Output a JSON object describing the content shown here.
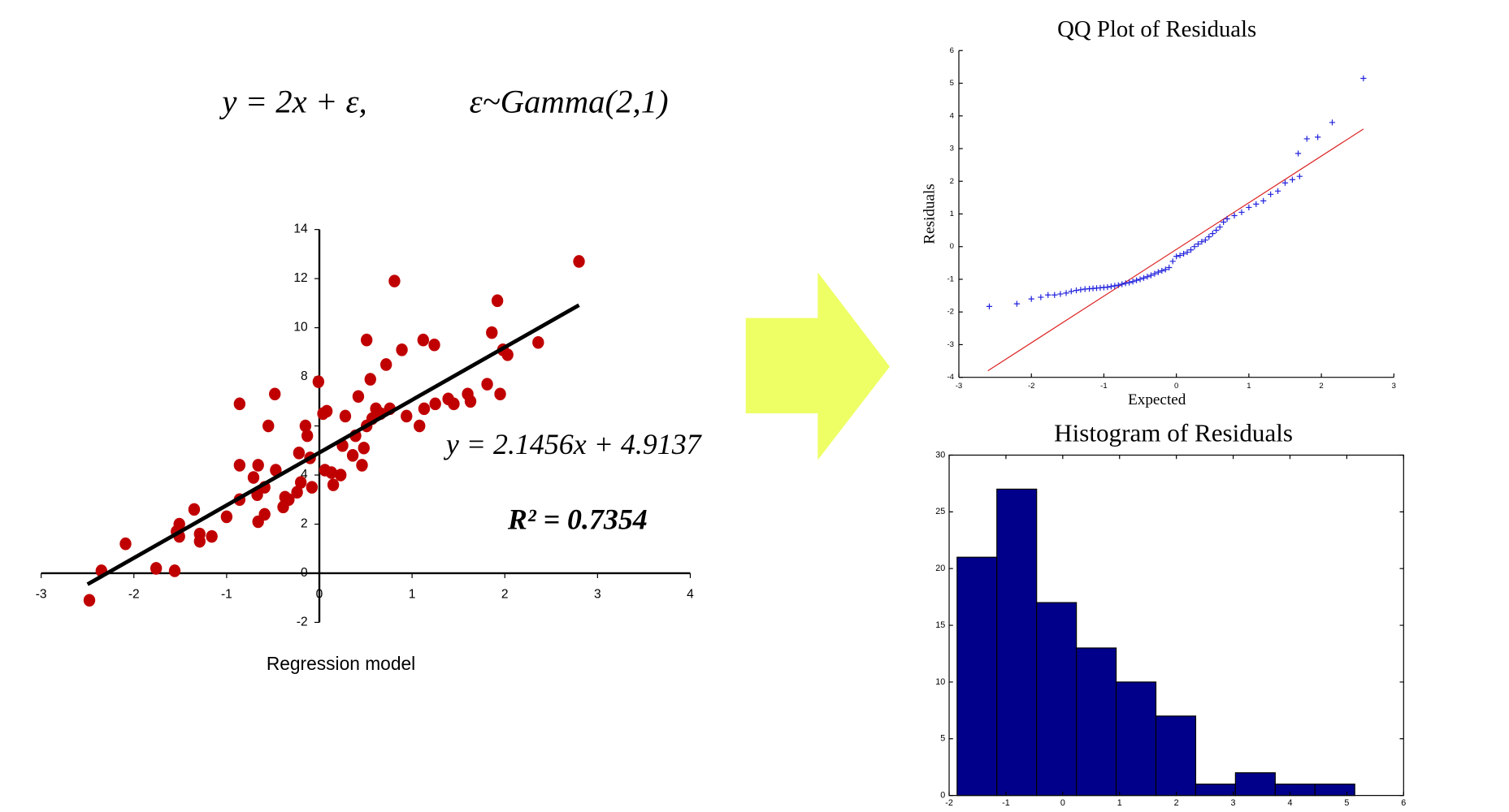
{
  "formula": [
    "y = 2x + ε,",
    "ε~Gamma(2,1)"
  ],
  "chart_data": [
    {
      "type": "scatter",
      "xlabel": "Regression model",
      "color": "#c00000",
      "x": [
        -2.48,
        -2.35,
        -2.09,
        -1.76,
        -1.56,
        -1.54,
        -1.51,
        -1.51,
        -1.35,
        -1.29,
        -1.29,
        -1.16,
        -1.0,
        -0.86,
        -0.86,
        -0.86,
        -0.71,
        -0.67,
        -0.66,
        -0.66,
        -0.59,
        -0.59,
        -0.55,
        -0.48,
        -0.47,
        -0.39,
        -0.37,
        -0.33,
        -0.24,
        -0.22,
        -0.2,
        -0.15,
        -0.13,
        -0.1,
        -0.08,
        -0.01,
        0.04,
        0.06,
        0.08,
        0.13,
        0.15,
        0.23,
        0.25,
        0.28,
        0.36,
        0.39,
        0.42,
        0.46,
        0.48,
        0.51,
        0.51,
        0.55,
        0.57,
        0.61,
        0.66,
        0.72,
        0.76,
        0.81,
        0.89,
        0.94,
        1.08,
        1.12,
        1.13,
        1.24,
        1.25,
        1.39,
        1.45,
        1.6,
        1.63,
        1.81,
        1.86,
        1.92,
        1.95,
        1.98,
        2.03,
        2.36,
        2.8
      ],
      "y": [
        -1.1,
        0.1,
        1.2,
        0.2,
        0.1,
        1.7,
        2.0,
        1.5,
        2.6,
        1.6,
        1.3,
        1.5,
        2.3,
        6.9,
        4.4,
        3.0,
        3.9,
        3.2,
        4.4,
        2.1,
        2.4,
        3.5,
        6.0,
        7.3,
        4.2,
        2.7,
        3.1,
        3.0,
        3.3,
        4.9,
        3.7,
        6.0,
        5.6,
        4.7,
        3.5,
        7.8,
        6.5,
        4.2,
        6.6,
        4.1,
        3.6,
        4.0,
        5.2,
        6.4,
        4.8,
        5.6,
        7.2,
        4.4,
        5.1,
        9.5,
        6.0,
        7.9,
        6.3,
        6.7,
        6.5,
        8.5,
        6.7,
        11.9,
        9.1,
        6.4,
        6.0,
        9.5,
        6.7,
        9.3,
        6.9,
        7.1,
        6.9,
        7.3,
        7.0,
        7.7,
        9.8,
        11.1,
        7.3,
        9.1,
        8.9,
        9.4,
        12.7
      ],
      "trendline": {
        "x": [
          -2.5,
          2.8
        ],
        "y": [
          -0.45,
          10.92
        ],
        "label": "y = 2.1456x + 4.9137",
        "color": "#000000"
      },
      "annotation": "R² = 0.7354",
      "xlim": [
        -3,
        4
      ],
      "ylim": [
        -2,
        14
      ],
      "xticks": [
        -3,
        -2,
        -1,
        0,
        1,
        2,
        3,
        4
      ],
      "yticks": [
        -2,
        0,
        2,
        4,
        6,
        8,
        10,
        12,
        14
      ]
    },
    {
      "type": "qq",
      "title": "QQ Plot of Residuals",
      "xlabel": "Expected",
      "ylabel": "Residuals",
      "color": "#2222dd",
      "x": [
        -2.58,
        -2.2,
        -2.0,
        -1.87,
        -1.77,
        -1.68,
        -1.6,
        -1.52,
        -1.45,
        -1.38,
        -1.32,
        -1.26,
        -1.2,
        -1.15,
        -1.1,
        -1.05,
        -1.0,
        -0.95,
        -0.9,
        -0.85,
        -0.8,
        -0.75,
        -0.7,
        -0.65,
        -0.6,
        -0.55,
        -0.5,
        -0.45,
        -0.4,
        -0.35,
        -0.3,
        -0.25,
        -0.2,
        -0.15,
        -0.1,
        -0.05,
        0.0,
        0.05,
        0.1,
        0.15,
        0.2,
        0.25,
        0.3,
        0.35,
        0.4,
        0.45,
        0.5,
        0.55,
        0.6,
        0.65,
        0.7,
        0.8,
        0.9,
        1.0,
        1.1,
        1.2,
        1.3,
        1.4,
        1.5,
        1.6,
        1.68,
        1.7,
        1.8,
        1.95,
        2.15,
        2.58
      ],
      "y": [
        -1.83,
        -1.75,
        -1.6,
        -1.55,
        -1.48,
        -1.48,
        -1.45,
        -1.42,
        -1.37,
        -1.34,
        -1.32,
        -1.3,
        -1.29,
        -1.28,
        -1.27,
        -1.26,
        -1.25,
        -1.24,
        -1.22,
        -1.2,
        -1.18,
        -1.15,
        -1.12,
        -1.1,
        -1.07,
        -1.03,
        -1.0,
        -0.96,
        -0.92,
        -0.88,
        -0.83,
        -0.78,
        -0.74,
        -0.7,
        -0.64,
        -0.45,
        -0.3,
        -0.27,
        -0.22,
        -0.17,
        -0.1,
        0.0,
        0.08,
        0.15,
        0.2,
        0.3,
        0.4,
        0.5,
        0.6,
        0.75,
        0.85,
        0.95,
        1.05,
        1.2,
        1.3,
        1.4,
        1.6,
        1.7,
        1.95,
        2.05,
        2.85,
        2.15,
        3.3,
        3.35,
        3.8,
        5.15
      ],
      "reference_line": {
        "x": [
          -2.6,
          2.58
        ],
        "y": [
          -3.8,
          3.6
        ],
        "color": "#dd2222"
      },
      "xlim": [
        -3,
        3
      ],
      "ylim": [
        -4,
        6
      ],
      "xticks": [
        -3,
        -2,
        -1,
        0,
        1,
        2,
        3
      ],
      "yticks": [
        -4,
        -3,
        -2,
        -1,
        0,
        1,
        2,
        3,
        4,
        5,
        6
      ]
    },
    {
      "type": "histogram",
      "title": "Histogram of Residuals",
      "color": "#00008b",
      "bins": [
        -1.86,
        -1.16,
        -0.46,
        0.24,
        0.94,
        1.64,
        2.34,
        3.04,
        3.74,
        4.44,
        5.14
      ],
      "values": [
        21,
        27,
        17,
        13,
        10,
        7,
        1,
        2,
        1,
        1
      ],
      "xlim": [
        -2,
        6
      ],
      "ylim": [
        0,
        30
      ],
      "xticks": [
        -2,
        -1,
        0,
        1,
        2,
        3,
        4,
        5,
        6
      ],
      "yticks": [
        0,
        5,
        10,
        15,
        20,
        25,
        30
      ]
    }
  ]
}
